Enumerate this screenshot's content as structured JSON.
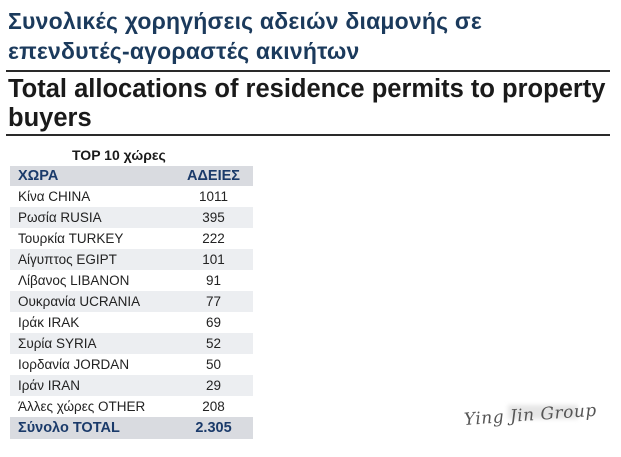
{
  "title_greek": "Συνολικές χορηγήσεις αδειών διαμονής σε επενδυτές-αγοραστές ακινήτων",
  "title_english": "Total allocations of residence permits to property buyers",
  "subtitle": "TOP 10 χώρες",
  "table": {
    "headers": {
      "country": "ΧΩΡΑ",
      "permits": "ΑΔΕΙΕΣ"
    },
    "rows": [
      {
        "country": "Κίνα CHINA",
        "permits": "1011"
      },
      {
        "country": "Ρωσία RUSIA",
        "permits": "395"
      },
      {
        "country": "Τουρκία TURKEY",
        "permits": "222"
      },
      {
        "country": "Αίγυπτος EGIPT",
        "permits": "101"
      },
      {
        "country": "Λίβανος LIBANON",
        "permits": "91"
      },
      {
        "country": "Ουκρανία UCRANIA",
        "permits": "77"
      },
      {
        "country": "Ιράκ IRAK",
        "permits": "69"
      },
      {
        "country": "Συρία SYRIA",
        "permits": "52"
      },
      {
        "country": "Ιορδανία JORDAN",
        "permits": "50"
      },
      {
        "country": "Ιράν IRAN",
        "permits": "29"
      },
      {
        "country": "Άλλες χώρες OTHER",
        "permits": "208"
      }
    ],
    "total": {
      "label": "Σύνολο TOTAL",
      "value": "2.305"
    }
  },
  "watermark": "Ying Jin Group"
}
